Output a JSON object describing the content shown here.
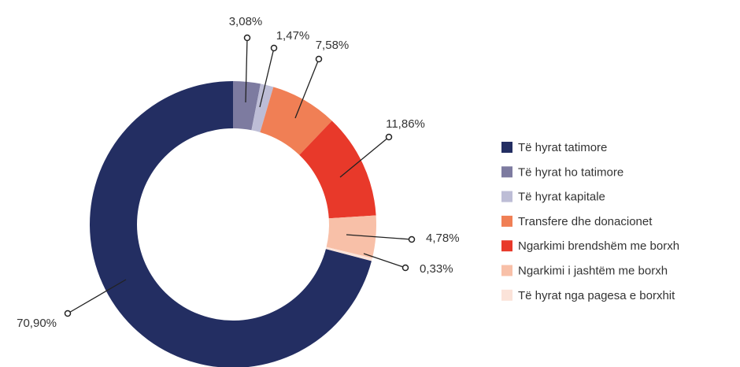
{
  "chart_data": {
    "type": "pie",
    "donut": true,
    "categories": [
      "Të hyrat tatimore",
      "Të hyrat ho tatimore",
      "Të hyrat kapitale",
      "Transfere dhe donacionet",
      "Ngarkimi  brendshëm me borxh",
      "Ngarkimi i jashtëm me borxh",
      "Të hyrat nga pagesa e borxhit"
    ],
    "values": [
      70.9,
      3.08,
      1.47,
      7.58,
      11.86,
      4.78,
      0.33
    ],
    "value_labels": [
      "70,90%",
      "3,08%",
      "1,47%",
      "7,58%",
      "11,86%",
      "4,78%",
      "0,33%"
    ],
    "colors": [
      "#232e62",
      "#7d7ba0",
      "#bdbdd6",
      "#f07f55",
      "#e8392a",
      "#f8c0a8",
      "#fbe3d9"
    ],
    "legend": "right"
  }
}
